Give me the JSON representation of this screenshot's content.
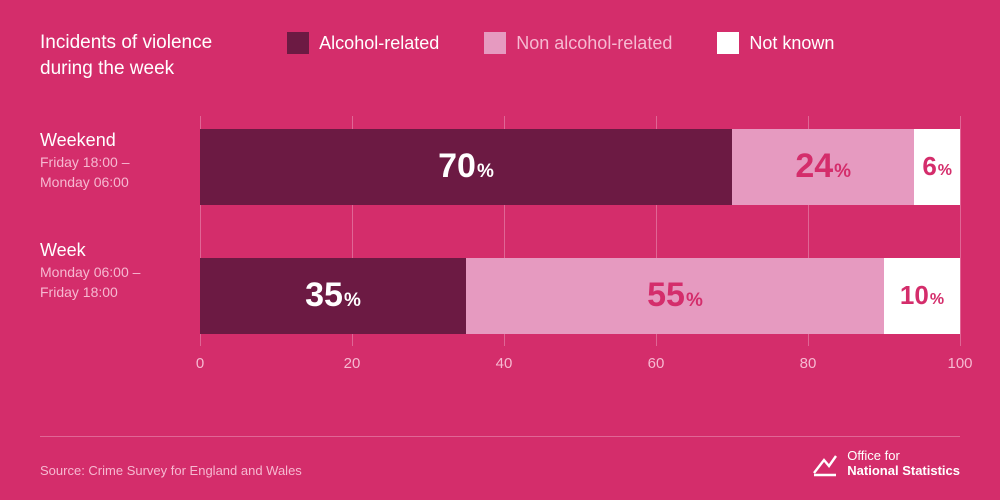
{
  "colors": {
    "background": "#d42d6b",
    "text_light": "#ffffff",
    "text_pink": "#f6b9d1",
    "grid": "#e06695",
    "series": {
      "alcohol": "#6c1a43",
      "non_alcohol": "#e69ac0",
      "not_known": "#ffffff"
    },
    "value_on_dark": "#ffffff",
    "value_on_light": "#d42d6b",
    "source_rule": "#e06695"
  },
  "title": "Incidents of violence\nduring the week",
  "legend": [
    {
      "key": "alcohol",
      "label": "Alcohol-related"
    },
    {
      "key": "non_alcohol",
      "label": "Non alcohol-related"
    },
    {
      "key": "not_known",
      "label": "Not known"
    }
  ],
  "axis": {
    "min": 0,
    "max": 100,
    "ticks": [
      0,
      20,
      40,
      60,
      80,
      100
    ]
  },
  "rows": [
    {
      "title": "Weekend",
      "subtitle": "Friday 18:00 –\nMonday 06:00",
      "segments": [
        {
          "series": "alcohol",
          "value": 70
        },
        {
          "series": "non_alcohol",
          "value": 24
        },
        {
          "series": "not_known",
          "value": 6
        }
      ]
    },
    {
      "title": "Week",
      "subtitle": "Monday 06:00 –\nFriday 18:00",
      "segments": [
        {
          "series": "alcohol",
          "value": 35
        },
        {
          "series": "non_alcohol",
          "value": 55
        },
        {
          "series": "not_known",
          "value": 10
        }
      ]
    }
  ],
  "source": "Source: Crime Survey for England and Wales",
  "attribution": {
    "line1": "Office for",
    "line2": "National Statistics"
  },
  "typography": {
    "title_fontsize": 19,
    "legend_fontsize": 18,
    "row_title_fontsize": 18,
    "row_sub_fontsize": 14,
    "value_fontsize": 34,
    "value_small_fontsize": 26,
    "tick_fontsize": 15,
    "source_fontsize": 13
  }
}
